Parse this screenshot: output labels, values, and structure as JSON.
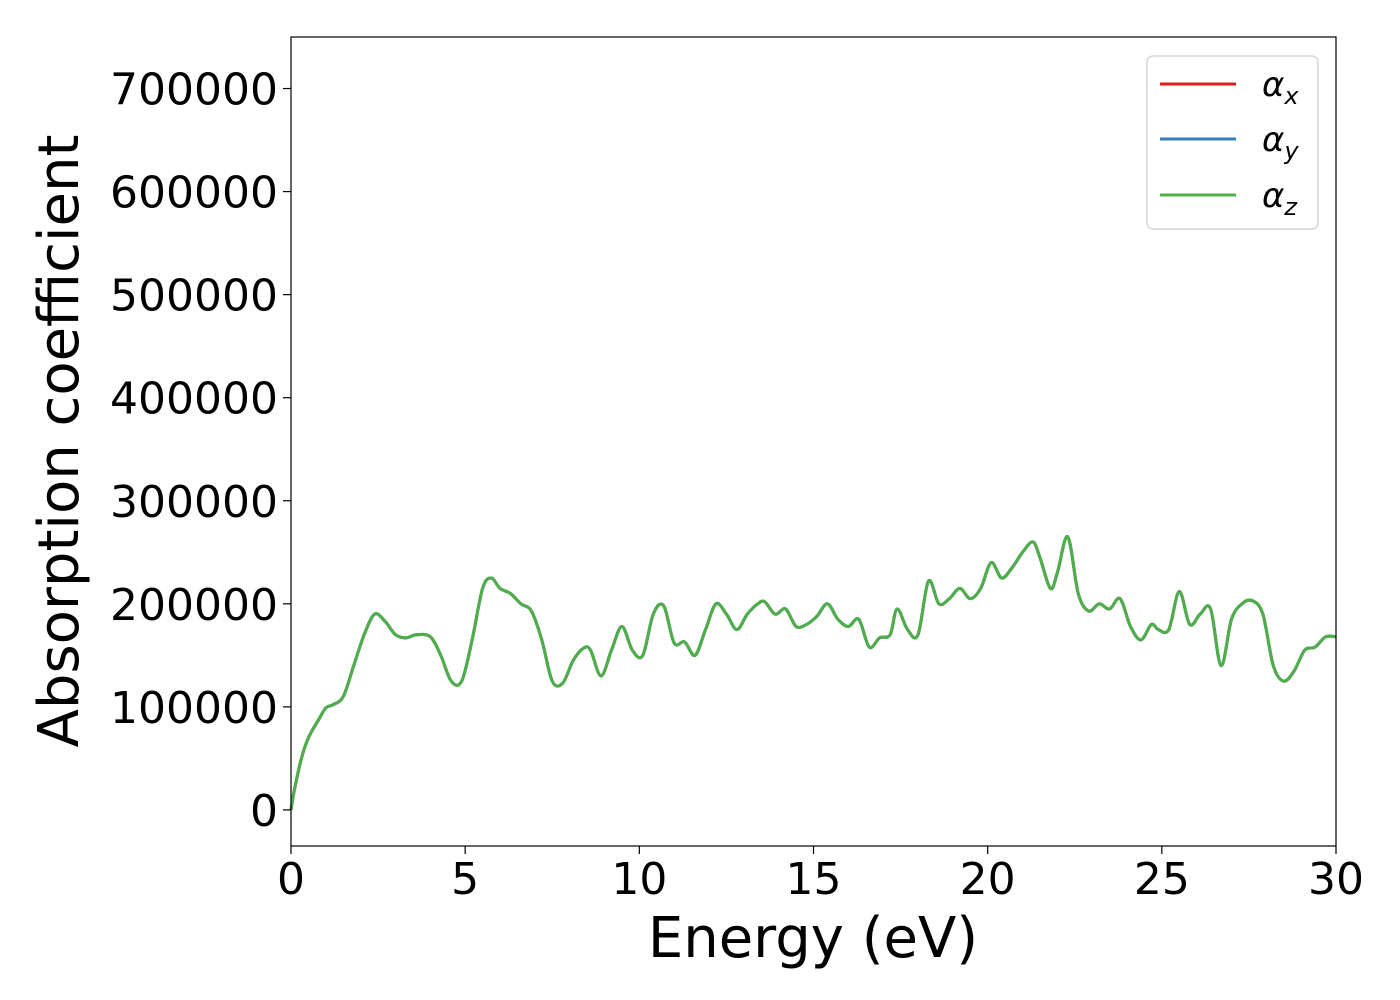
{
  "chart_data": {
    "type": "line",
    "xlabel": "Energy (eV)",
    "ylabel": "Absorption coefficient",
    "xlim": [
      0,
      30
    ],
    "ylim": [
      -35000,
      750000
    ],
    "xticks": [
      0,
      5,
      10,
      15,
      20,
      25,
      30
    ],
    "xtick_labels": [
      "0",
      "5",
      "10",
      "15",
      "20",
      "25",
      "30"
    ],
    "yticks": [
      0,
      100000,
      200000,
      300000,
      400000,
      500000,
      600000,
      700000
    ],
    "ytick_labels": [
      "0",
      "100000",
      "200000",
      "300000",
      "400000",
      "500000",
      "600000",
      "700000"
    ],
    "grid": false,
    "legend_position": "top-right",
    "x": [
      0,
      0.1,
      0.3,
      0.5,
      0.8,
      1.0,
      1.2,
      1.5,
      1.8,
      2.1,
      2.4,
      2.7,
      3.0,
      3.3,
      3.6,
      4.0,
      4.3,
      4.6,
      4.9,
      5.2,
      5.5,
      5.75,
      6.0,
      6.3,
      6.6,
      6.9,
      7.2,
      7.5,
      7.8,
      8.1,
      8.4,
      8.6,
      8.9,
      9.2,
      9.5,
      9.8,
      10.1,
      10.4,
      10.7,
      11.0,
      11.3,
      11.6,
      11.9,
      12.2,
      12.5,
      12.8,
      13.1,
      13.4,
      13.6,
      13.9,
      14.2,
      14.5,
      14.8,
      15.1,
      15.4,
      15.7,
      16.0,
      16.3,
      16.6,
      16.9,
      17.2,
      17.4,
      17.7,
      18.0,
      18.3,
      18.6,
      18.9,
      19.2,
      19.5,
      19.8,
      20.1,
      20.4,
      20.7,
      21.0,
      21.3,
      21.5,
      21.8,
      22.0,
      22.3,
      22.6,
      22.9,
      23.2,
      23.5,
      23.8,
      24.1,
      24.4,
      24.7,
      24.9,
      25.2,
      25.5,
      25.8,
      26.1,
      26.4,
      26.7,
      27.0,
      27.3,
      27.6,
      27.9,
      28.2,
      28.5,
      28.8,
      29.1,
      29.4,
      29.7,
      30.0
    ],
    "series": [
      {
        "name": "αx",
        "color": "#e41a1c",
        "values": [
          0,
          20000,
          50000,
          70000,
          88000,
          99000,
          102000,
          110000,
          140000,
          170000,
          190000,
          183000,
          170000,
          167000,
          170000,
          168000,
          150000,
          125000,
          125000,
          165000,
          215000,
          225000,
          215000,
          210000,
          200000,
          193000,
          165000,
          125000,
          123000,
          145000,
          157000,
          155000,
          130000,
          155000,
          178000,
          155000,
          150000,
          190000,
          198000,
          162000,
          163000,
          150000,
          175000,
          200000,
          190000,
          175000,
          190000,
          200000,
          202000,
          190000,
          195000,
          178000,
          180000,
          188000,
          200000,
          185000,
          178000,
          185000,
          158000,
          167000,
          170000,
          195000,
          175000,
          170000,
          222000,
          200000,
          205000,
          215000,
          205000,
          215000,
          240000,
          225000,
          235000,
          250000,
          260000,
          245000,
          215000,
          230000,
          265000,
          210000,
          193000,
          200000,
          195000,
          205000,
          178000,
          165000,
          180000,
          175000,
          175000,
          212000,
          180000,
          190000,
          195000,
          140000,
          185000,
          200000,
          203000,
          190000,
          140000,
          125000,
          135000,
          155000,
          158000,
          168000,
          168000
        ]
      },
      {
        "name": "αy",
        "color": "#377eb8",
        "values": [
          0,
          20000,
          50000,
          70000,
          88000,
          99000,
          102000,
          110000,
          140000,
          170000,
          190000,
          183000,
          170000,
          167000,
          170000,
          168000,
          150000,
          125000,
          125000,
          165000,
          215000,
          225000,
          215000,
          210000,
          200000,
          193000,
          165000,
          125000,
          123000,
          145000,
          157000,
          155000,
          130000,
          155000,
          178000,
          155000,
          150000,
          190000,
          198000,
          162000,
          163000,
          150000,
          175000,
          200000,
          190000,
          175000,
          190000,
          200000,
          202000,
          190000,
          195000,
          178000,
          180000,
          188000,
          200000,
          185000,
          178000,
          185000,
          158000,
          167000,
          170000,
          195000,
          175000,
          170000,
          222000,
          200000,
          205000,
          215000,
          205000,
          215000,
          240000,
          225000,
          235000,
          250000,
          260000,
          245000,
          215000,
          230000,
          265000,
          210000,
          193000,
          200000,
          195000,
          205000,
          178000,
          165000,
          180000,
          175000,
          175000,
          212000,
          180000,
          190000,
          195000,
          140000,
          185000,
          200000,
          203000,
          190000,
          140000,
          125000,
          135000,
          155000,
          158000,
          168000,
          168000
        ]
      },
      {
        "name": "αz",
        "color": "#4daf4a",
        "values": [
          0,
          20000,
          50000,
          70000,
          88000,
          99000,
          102000,
          110000,
          140000,
          170000,
          190000,
          183000,
          170000,
          167000,
          170000,
          168000,
          150000,
          125000,
          125000,
          165000,
          215000,
          225000,
          215000,
          210000,
          200000,
          193000,
          165000,
          125000,
          123000,
          145000,
          157000,
          155000,
          130000,
          155000,
          178000,
          155000,
          150000,
          190000,
          198000,
          162000,
          163000,
          150000,
          175000,
          200000,
          190000,
          175000,
          190000,
          200000,
          202000,
          190000,
          195000,
          178000,
          180000,
          188000,
          200000,
          185000,
          178000,
          185000,
          158000,
          167000,
          170000,
          195000,
          175000,
          170000,
          222000,
          200000,
          205000,
          215000,
          205000,
          215000,
          240000,
          225000,
          235000,
          250000,
          260000,
          245000,
          215000,
          230000,
          265000,
          210000,
          193000,
          200000,
          195000,
          205000,
          178000,
          165000,
          180000,
          175000,
          175000,
          212000,
          180000,
          190000,
          195000,
          140000,
          185000,
          200000,
          203000,
          190000,
          140000,
          125000,
          135000,
          155000,
          158000,
          168000,
          168000
        ]
      }
    ],
    "legend": [
      {
        "symbol": "α",
        "sub": "x",
        "color": "#e41a1c"
      },
      {
        "symbol": "α",
        "sub": "y",
        "color": "#377eb8"
      },
      {
        "symbol": "α",
        "sub": "z",
        "color": "#4daf4a"
      }
    ]
  }
}
